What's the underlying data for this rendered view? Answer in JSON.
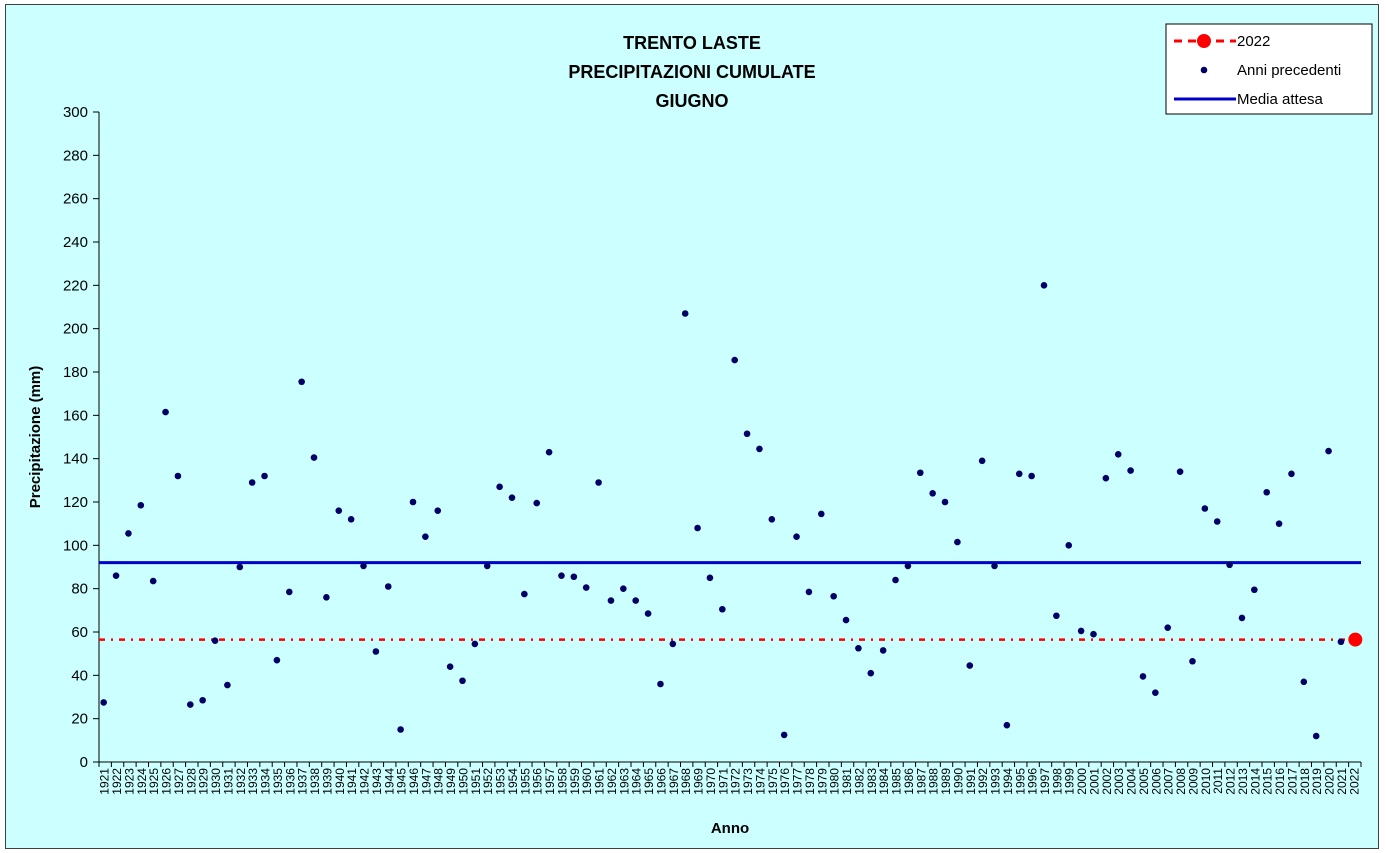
{
  "chart_data": {
    "type": "scatter",
    "title": [
      "TRENTO LASTE",
      "PRECIPITAZIONI CUMULATE",
      "GIUGNO"
    ],
    "xlabel": "Anno",
    "ylabel": "Precipitazione (mm)",
    "ylim": [
      0,
      300
    ],
    "yticks": [
      0,
      20,
      40,
      60,
      80,
      100,
      120,
      140,
      160,
      180,
      200,
      220,
      240,
      260,
      280,
      300
    ],
    "grid": false,
    "legend_position": "top-right",
    "x": [
      "1921",
      "1922",
      "1923",
      "1924",
      "1925",
      "1926",
      "1927",
      "1928",
      "1929",
      "1930",
      "1931",
      "1932",
      "1933",
      "1934",
      "1935",
      "1936",
      "1937",
      "1938",
      "1939",
      "1940",
      "1941",
      "1942",
      "1943",
      "1944",
      "1945",
      "1946",
      "1947",
      "1948",
      "1949",
      "1950",
      "1951",
      "1952",
      "1953",
      "1954",
      "1955",
      "1956",
      "1957",
      "1958",
      "1959",
      "1960",
      "1961",
      "1962",
      "1963",
      "1964",
      "1965",
      "1966",
      "1967",
      "1968",
      "1969",
      "1970",
      "1971",
      "1972",
      "1973",
      "1974",
      "1975",
      "1976",
      "1977",
      "1978",
      "1979",
      "1980",
      "1981",
      "1982",
      "1983",
      "1984",
      "1985",
      "1986",
      "1987",
      "1988",
      "1989",
      "1990",
      "1991",
      "1992",
      "1993",
      "1994",
      "1995",
      "1996",
      "1997",
      "1998",
      "1999",
      "2000",
      "2001",
      "2002",
      "2003",
      "2004",
      "2005",
      "2006",
      "2007",
      "2008",
      "2009",
      "2010",
      "2011",
      "2012",
      "2013",
      "2014",
      "2015",
      "2016",
      "2017",
      "2018",
      "2019",
      "2020",
      "2021",
      "2022"
    ],
    "series": [
      {
        "name": "Anni precedenti",
        "kind": "points",
        "color": "#000066",
        "values": [
          27.5,
          86,
          105.5,
          118.5,
          83.5,
          161.5,
          132,
          26.5,
          28.5,
          56,
          35.5,
          90,
          129,
          132,
          47,
          78.5,
          175.5,
          140.5,
          76,
          116,
          112,
          90.5,
          51,
          81,
          15,
          120,
          104,
          116,
          44,
          37.5,
          54.5,
          90.5,
          127,
          122,
          77.5,
          119.5,
          143,
          86,
          85.5,
          80.5,
          129,
          74.5,
          80,
          74.5,
          68.5,
          36,
          54.5,
          207,
          108,
          85,
          70.5,
          185.5,
          151.5,
          144.5,
          112,
          12.5,
          104,
          78.5,
          114.5,
          76.5,
          65.5,
          52.5,
          41,
          51.5,
          84,
          90.5,
          133.5,
          124,
          120,
          101.5,
          44.5,
          139,
          90.5,
          17,
          133,
          132,
          220,
          67.5,
          100,
          60.5,
          59,
          131,
          142,
          134.5,
          39.5,
          32,
          62,
          134,
          46.5,
          117,
          111,
          91,
          66.5,
          79.5,
          124.5,
          110,
          133,
          37,
          12,
          143.5,
          55.5,
          null
        ]
      },
      {
        "name": "2022",
        "kind": "point-and-dashed-line",
        "color": "#ff0000",
        "value": 56.5
      },
      {
        "name": "Media attesa",
        "kind": "horizontal-line",
        "color": "#0000cc",
        "value": 92
      }
    ]
  }
}
